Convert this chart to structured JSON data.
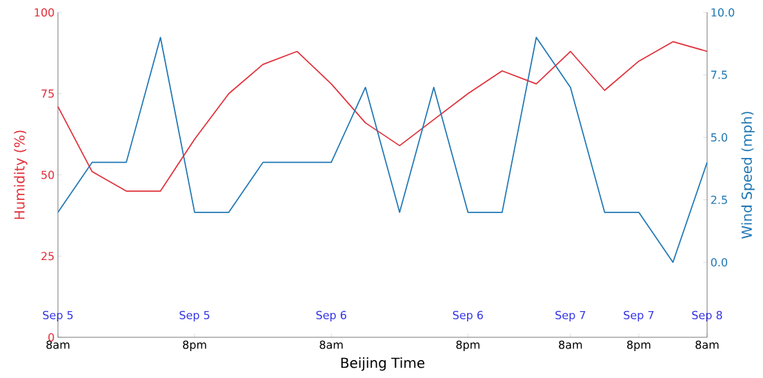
{
  "chart_data": {
    "type": "line",
    "xlabel": "Beijing Time",
    "ylabel": "Humidity (%)",
    "y2label": "Wind Speed (mph)",
    "categories": [
      "8am",
      null,
      null,
      null,
      "8pm",
      null,
      null,
      null,
      "8am",
      null,
      null,
      null,
      "8pm",
      null,
      null,
      "8am",
      null,
      "8pm",
      null,
      "8am"
    ],
    "annotations": [
      "Sep 5",
      "Sep 5",
      "Sep 6",
      "Sep 6",
      "Sep 7",
      "Sep 7",
      "Sep 8"
    ],
    "ylim": [
      0,
      100
    ],
    "yticks": [
      0,
      25,
      50,
      75,
      100
    ],
    "y2lim": [
      -3,
      10
    ],
    "y2ticks": [
      {
        "value": 0,
        "label": "0.0"
      },
      {
        "value": 2.5,
        "label": "2.5"
      },
      {
        "value": 5,
        "label": "5.0"
      },
      {
        "value": 7.5,
        "label": "7.5"
      },
      {
        "value": 10,
        "label": "10.0"
      }
    ],
    "series": [
      {
        "color": "#e0303a",
        "axis": "y",
        "values": [
          71,
          51,
          45,
          45,
          61,
          75,
          84,
          88,
          78,
          66,
          59,
          67,
          75,
          82,
          78,
          88,
          76,
          85,
          91,
          88
        ]
      },
      {
        "color": "#1f77b4",
        "axis": "y2",
        "values": [
          2,
          4,
          4,
          9,
          2,
          2,
          4,
          4,
          4,
          7,
          2,
          7,
          2,
          2,
          9,
          7,
          2,
          2,
          0,
          4
        ]
      }
    ],
    "grid": false
  }
}
